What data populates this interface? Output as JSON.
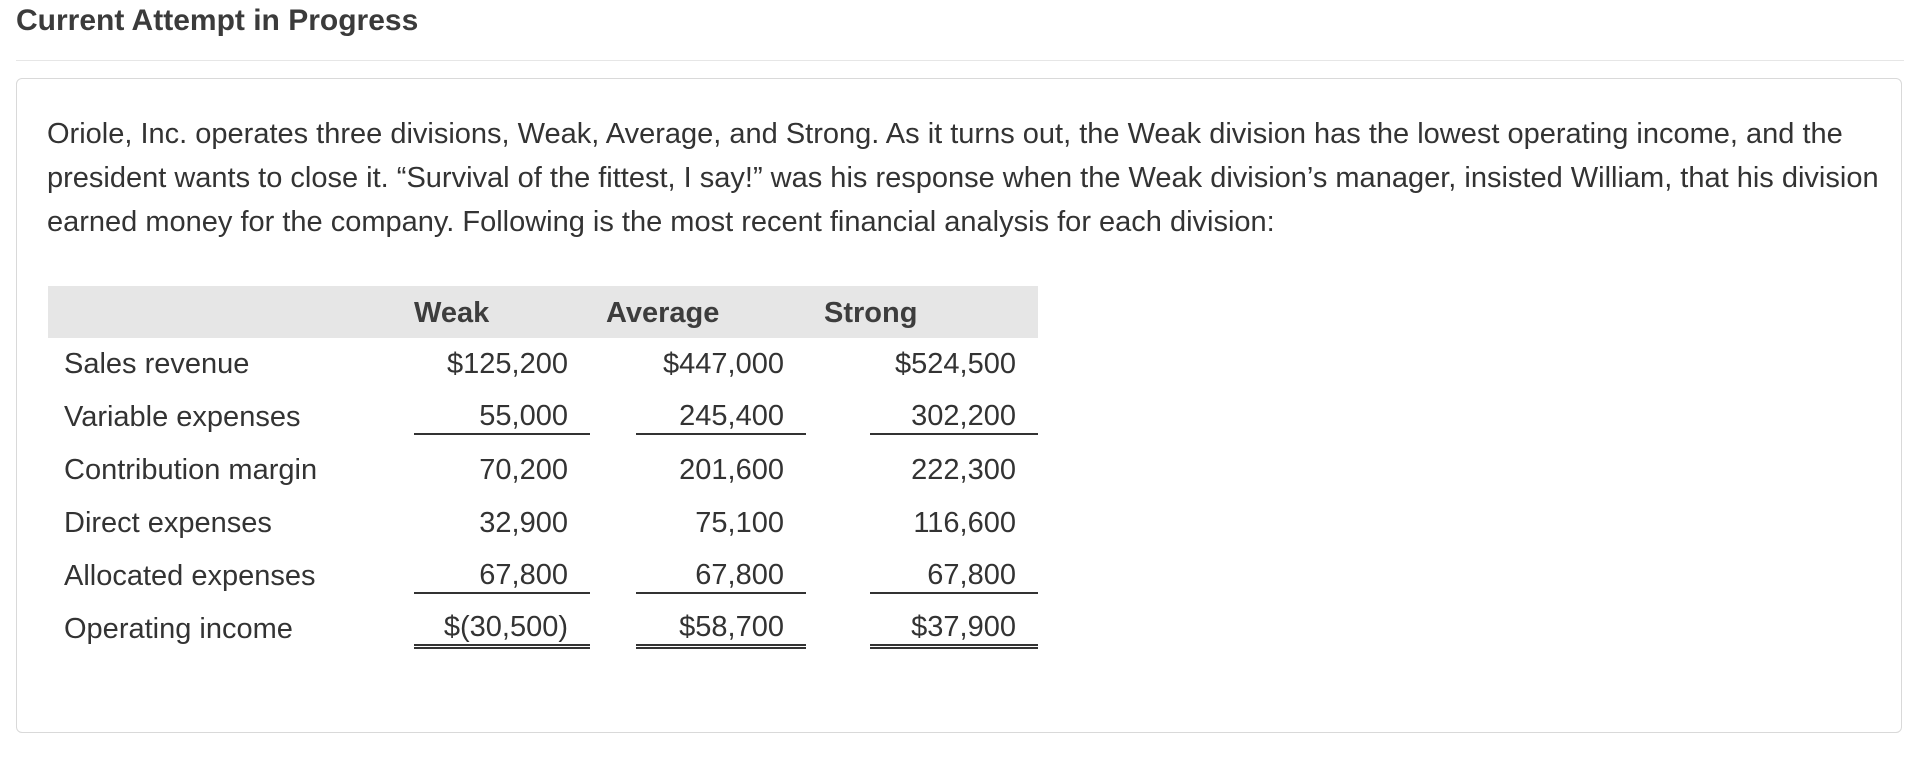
{
  "header": {
    "title": "Current Attempt in Progress"
  },
  "question": {
    "text": "Oriole, Inc. operates three divisions, Weak, Average, and Strong. As it turns out, the Weak division has the lowest operating income, and the president wants to close it. “Survival of the fittest, I say!” was his response when the Weak division’s manager, insisted William, that his division earned money for the company. Following is the most recent financial analysis for each division:"
  },
  "table": {
    "columns": [
      "Weak",
      "Average",
      "Strong"
    ],
    "rows": [
      {
        "label": "Sales revenue",
        "values": [
          "$125,200",
          "$447,000",
          "$524,500"
        ]
      },
      {
        "label": "Variable expenses",
        "values": [
          "55,000",
          "245,400",
          "302,200"
        ]
      },
      {
        "label": "Contribution margin",
        "values": [
          "70,200",
          "201,600",
          "222,300"
        ]
      },
      {
        "label": "Direct expenses",
        "values": [
          "32,900",
          "75,100",
          "116,600"
        ]
      },
      {
        "label": "Allocated expenses",
        "values": [
          "67,800",
          "67,800",
          "67,800"
        ]
      },
      {
        "label": "Operating income",
        "values": [
          "$(30,500)",
          "$58,700",
          "$37,900"
        ]
      }
    ]
  }
}
